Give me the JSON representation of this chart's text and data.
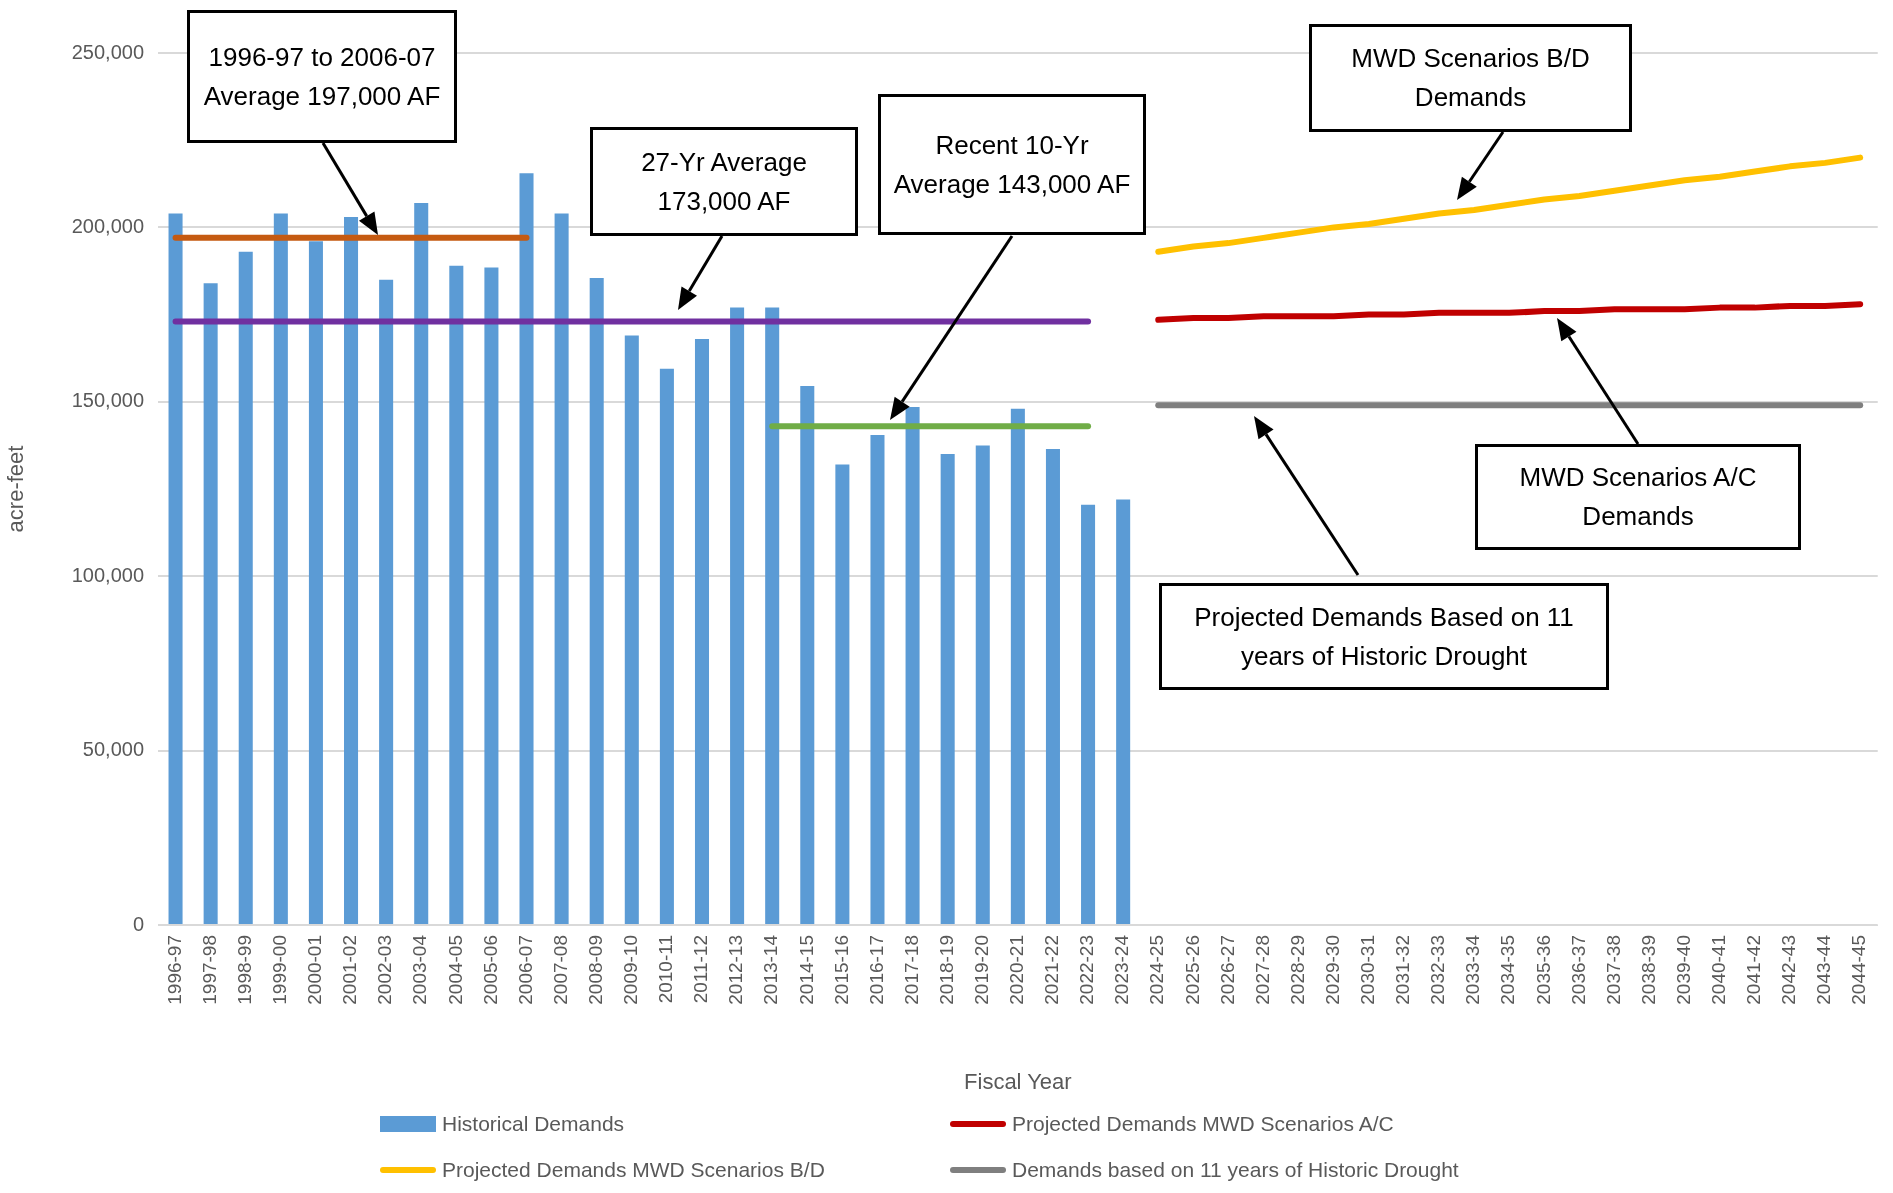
{
  "chart_data": {
    "type": "bar",
    "xlabel": "Fiscal Year",
    "ylabel": "acre-feet",
    "categories": [
      "1996-97",
      "1997-98",
      "1998-99",
      "1999-00",
      "2000-01",
      "2001-02",
      "2002-03",
      "2003-04",
      "2004-05",
      "2005-06",
      "2006-07",
      "2007-08",
      "2008-09",
      "2009-10",
      "2010-11",
      "2011-12",
      "2012-13",
      "2013-14",
      "2014-15",
      "2015-16",
      "2016-17",
      "2017-18",
      "2018-19",
      "2019-20",
      "2020-21",
      "2021-22",
      "2022-23",
      "2023-24",
      "2024-25",
      "2025-26",
      "2026-27",
      "2027-28",
      "2028-29",
      "2029-30",
      "2030-31",
      "2031-32",
      "2032-33",
      "2033-34",
      "2034-35",
      "2035-36",
      "2036-37",
      "2037-38",
      "2038-39",
      "2039-40",
      "2040-41",
      "2041-42",
      "2042-43",
      "2043-44",
      "2044-45"
    ],
    "series": [
      {
        "name": "Historical Demands",
        "color": "#5b9bd5",
        "values": [
          204000,
          184000,
          193000,
          204000,
          196000,
          203000,
          185000,
          207000,
          189000,
          188500,
          215500,
          204000,
          185500,
          169000,
          159500,
          168000,
          177000,
          177000,
          154500,
          132000,
          140500,
          148500,
          135000,
          137500,
          148000,
          136500,
          120500,
          122000,
          null,
          null,
          null,
          null,
          null,
          null,
          null,
          null,
          null,
          null,
          null,
          null,
          null,
          null,
          null,
          null,
          null,
          null,
          null,
          null,
          null
        ]
      },
      {
        "name": "Projected Demands MWD Scenarios A/C",
        "type": "line",
        "color": "#c00000",
        "values": [
          null,
          null,
          null,
          null,
          null,
          null,
          null,
          null,
          null,
          null,
          null,
          null,
          null,
          null,
          null,
          null,
          null,
          null,
          null,
          null,
          null,
          null,
          null,
          null,
          null,
          null,
          null,
          null,
          173500,
          174000,
          174000,
          174500,
          174500,
          174500,
          175000,
          175000,
          175500,
          175500,
          175500,
          176000,
          176000,
          176500,
          176500,
          176500,
          177000,
          177000,
          177500,
          177500,
          178000
        ]
      },
      {
        "name": "Projected Demands MWD Scenarios B/D",
        "type": "line",
        "color": "#ffc000",
        "values": [
          null,
          null,
          null,
          null,
          null,
          null,
          null,
          null,
          null,
          null,
          null,
          null,
          null,
          null,
          null,
          null,
          null,
          null,
          null,
          null,
          null,
          null,
          null,
          null,
          null,
          null,
          null,
          null,
          193000,
          194500,
          195500,
          197000,
          198500,
          200000,
          201000,
          202500,
          204000,
          205000,
          206500,
          208000,
          209000,
          210500,
          212000,
          213500,
          214500,
          216000,
          217500,
          218500,
          220000
        ]
      },
      {
        "name": "Demands based on 11 years of Historic Drought",
        "type": "line",
        "color": "#7f7f7f",
        "values": [
          null,
          null,
          null,
          null,
          null,
          null,
          null,
          null,
          null,
          null,
          null,
          null,
          null,
          null,
          null,
          null,
          null,
          null,
          null,
          null,
          null,
          null,
          null,
          null,
          null,
          null,
          null,
          null,
          149000,
          149000,
          149000,
          149000,
          149000,
          149000,
          149000,
          149000,
          149000,
          149000,
          149000,
          149000,
          149000,
          149000,
          149000,
          149000,
          149000,
          149000,
          149000,
          149000,
          149000
        ]
      },
      {
        "type": "line",
        "color": "#c55a11",
        "values": [
          197000,
          197000,
          197000,
          197000,
          197000,
          197000,
          197000,
          197000,
          197000,
          197000,
          197000,
          null,
          null,
          null,
          null,
          null,
          null,
          null,
          null,
          null,
          null,
          null,
          null,
          null,
          null,
          null,
          null,
          null,
          null,
          null,
          null,
          null,
          null,
          null,
          null,
          null,
          null,
          null,
          null,
          null,
          null,
          null,
          null,
          null,
          null,
          null,
          null,
          null,
          null
        ]
      },
      {
        "type": "line",
        "color": "#7030a0",
        "values": [
          173000,
          173000,
          173000,
          173000,
          173000,
          173000,
          173000,
          173000,
          173000,
          173000,
          173000,
          173000,
          173000,
          173000,
          173000,
          173000,
          173000,
          173000,
          173000,
          173000,
          173000,
          173000,
          173000,
          173000,
          173000,
          173000,
          173000,
          null,
          null,
          null,
          null,
          null,
          null,
          null,
          null,
          null,
          null,
          null,
          null,
          null,
          null,
          null,
          null,
          null,
          null,
          null,
          null,
          null,
          null
        ]
      },
      {
        "type": "line",
        "color": "#70ad47",
        "values": [
          null,
          null,
          null,
          null,
          null,
          null,
          null,
          null,
          null,
          null,
          null,
          null,
          null,
          null,
          null,
          null,
          null,
          143000,
          143000,
          143000,
          143000,
          143000,
          143000,
          143000,
          143000,
          143000,
          143000,
          null,
          null,
          null,
          null,
          null,
          null,
          null,
          null,
          null,
          null,
          null,
          null,
          null,
          null,
          null,
          null,
          null,
          null,
          null,
          null,
          null,
          null
        ]
      }
    ],
    "ylim": [
      0,
      250000
    ],
    "yticks": [
      0,
      {
        "value": 50000,
        "label": "50,000"
      },
      {
        "value": 100000,
        "label": "100,000"
      },
      {
        "value": 150000,
        "label": "150,000"
      },
      {
        "value": 200000,
        "label": "200,000"
      },
      {
        "value": 250000,
        "label": "250,000"
      }
    ],
    "grid": "y",
    "legend": "bottom",
    "marker": "none",
    "annotations": [
      "1996-97 to 2006-07 Average 197,000 AF",
      "27-Yr Average 173,000 AF",
      "Recent 10-Yr Average 143,000 AF",
      "MWD Scenarios B/D Demands",
      "MWD Scenarios A/C Demands",
      "Projected Demands Based on 11 years of Historic Drought"
    ]
  }
}
